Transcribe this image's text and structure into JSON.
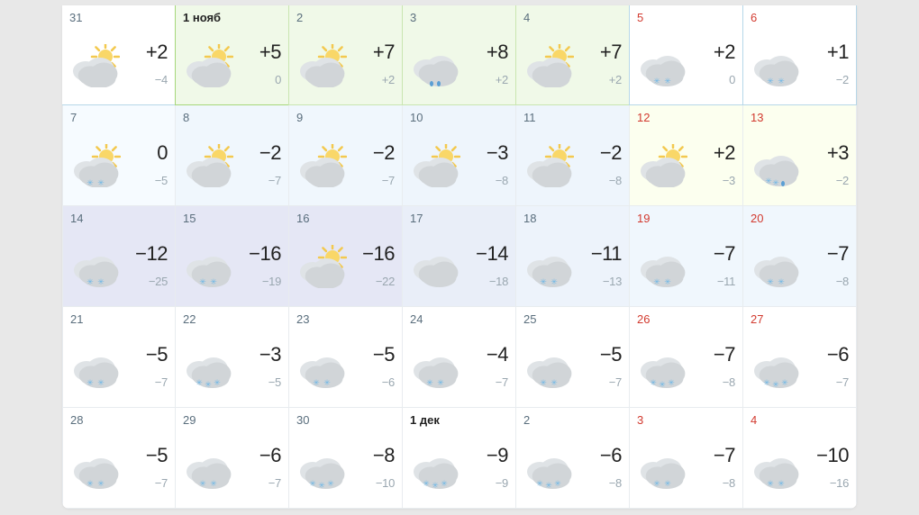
{
  "calendar": {
    "colors": {
      "page_bg": "#e8e8e8",
      "card_bg": "#ffffff",
      "border": "#e8ecef",
      "date_default": "#5a6e7d",
      "date_weekend": "#d23a2f",
      "date_bold": "#222222",
      "high_temp": "#222222",
      "low_temp": "#9aa7b0"
    },
    "days": [
      {
        "date": "31",
        "weekend": false,
        "bold": false,
        "high": "+2",
        "low": "−4",
        "icon": "partly-sunny",
        "bg": "#ffffff",
        "border_color": "#b6d7e8"
      },
      {
        "date": "1 нояб",
        "weekend": false,
        "bold": true,
        "high": "+5",
        "low": "0",
        "icon": "partly-sunny",
        "bg": "#f0f9e8",
        "border_color": "#a6d77a"
      },
      {
        "date": "2",
        "weekend": false,
        "bold": false,
        "high": "+7",
        "low": "+2",
        "icon": "partly-sunny",
        "bg": "#f0f9e8",
        "border_color": "#c9e6b0"
      },
      {
        "date": "3",
        "weekend": false,
        "bold": false,
        "high": "+8",
        "low": "+2",
        "icon": "rain",
        "bg": "#f0f9e8",
        "border_color": "#c9e6b0"
      },
      {
        "date": "4",
        "weekend": false,
        "bold": false,
        "high": "+7",
        "low": "+2",
        "icon": "partly-sunny",
        "bg": "#f0f9e8",
        "border_color": "#c9e6b0"
      },
      {
        "date": "5",
        "weekend": true,
        "bold": false,
        "high": "+2",
        "low": "0",
        "icon": "cloud-snow",
        "bg": "#ffffff",
        "border_color": "#b6d7e8"
      },
      {
        "date": "6",
        "weekend": true,
        "bold": false,
        "high": "+1",
        "low": "−2",
        "icon": "cloud-snow",
        "bg": "#ffffff",
        "border_color": "#b6d7e8"
      },
      {
        "date": "7",
        "weekend": false,
        "bold": false,
        "high": "0",
        "low": "−5",
        "icon": "partly-sunny-snow",
        "bg": "#f6fbff"
      },
      {
        "date": "8",
        "weekend": false,
        "bold": false,
        "high": "−2",
        "low": "−7",
        "icon": "partly-sunny",
        "bg": "#f0f7fd"
      },
      {
        "date": "9",
        "weekend": false,
        "bold": false,
        "high": "−2",
        "low": "−7",
        "icon": "partly-sunny",
        "bg": "#f0f7fd"
      },
      {
        "date": "10",
        "weekend": false,
        "bold": false,
        "high": "−3",
        "low": "−8",
        "icon": "partly-sunny",
        "bg": "#eef5fc"
      },
      {
        "date": "11",
        "weekend": false,
        "bold": false,
        "high": "−2",
        "low": "−8",
        "icon": "partly-sunny",
        "bg": "#eef5fc"
      },
      {
        "date": "12",
        "weekend": true,
        "bold": false,
        "high": "+2",
        "low": "−3",
        "icon": "partly-sunny",
        "bg": "#fcffef"
      },
      {
        "date": "13",
        "weekend": true,
        "bold": false,
        "high": "+3",
        "low": "−2",
        "icon": "rain-snow",
        "bg": "#fcffef"
      },
      {
        "date": "14",
        "weekend": false,
        "bold": false,
        "high": "−12",
        "low": "−25",
        "icon": "cloud-snow",
        "bg": "#e5e7f5"
      },
      {
        "date": "15",
        "weekend": false,
        "bold": false,
        "high": "−16",
        "low": "−19",
        "icon": "cloud-snow",
        "bg": "#e5e7f5"
      },
      {
        "date": "16",
        "weekend": false,
        "bold": false,
        "high": "−16",
        "low": "−22",
        "icon": "partly-sunny",
        "bg": "#e5e7f5"
      },
      {
        "date": "17",
        "weekend": false,
        "bold": false,
        "high": "−14",
        "low": "−18",
        "icon": "cloudy",
        "bg": "#e9eef8"
      },
      {
        "date": "18",
        "weekend": false,
        "bold": false,
        "high": "−11",
        "low": "−13",
        "icon": "cloud-snow",
        "bg": "#edf3fb"
      },
      {
        "date": "19",
        "weekend": true,
        "bold": false,
        "high": "−7",
        "low": "−11",
        "icon": "cloud-snow",
        "bg": "#f0f7fd"
      },
      {
        "date": "20",
        "weekend": true,
        "bold": false,
        "high": "−7",
        "low": "−8",
        "icon": "cloud-snow",
        "bg": "#f0f7fd"
      },
      {
        "date": "21",
        "weekend": false,
        "bold": false,
        "high": "−5",
        "low": "−7",
        "icon": "cloud-snow",
        "bg": "#ffffff"
      },
      {
        "date": "22",
        "weekend": false,
        "bold": false,
        "high": "−3",
        "low": "−5",
        "icon": "cloud-heavy-snow",
        "bg": "#ffffff"
      },
      {
        "date": "23",
        "weekend": false,
        "bold": false,
        "high": "−5",
        "low": "−6",
        "icon": "cloud-snow",
        "bg": "#ffffff"
      },
      {
        "date": "24",
        "weekend": false,
        "bold": false,
        "high": "−4",
        "low": "−7",
        "icon": "cloud-snow",
        "bg": "#ffffff"
      },
      {
        "date": "25",
        "weekend": false,
        "bold": false,
        "high": "−5",
        "low": "−7",
        "icon": "cloud-snow",
        "bg": "#ffffff"
      },
      {
        "date": "26",
        "weekend": true,
        "bold": false,
        "high": "−7",
        "low": "−8",
        "icon": "cloud-heavy-snow",
        "bg": "#ffffff"
      },
      {
        "date": "27",
        "weekend": true,
        "bold": false,
        "high": "−6",
        "low": "−7",
        "icon": "cloud-heavy-snow",
        "bg": "#ffffff"
      },
      {
        "date": "28",
        "weekend": false,
        "bold": false,
        "high": "−5",
        "low": "−7",
        "icon": "cloud-snow",
        "bg": "#ffffff"
      },
      {
        "date": "29",
        "weekend": false,
        "bold": false,
        "high": "−6",
        "low": "−7",
        "icon": "cloud-snow",
        "bg": "#ffffff"
      },
      {
        "date": "30",
        "weekend": false,
        "bold": false,
        "high": "−8",
        "low": "−10",
        "icon": "cloud-heavy-snow",
        "bg": "#ffffff"
      },
      {
        "date": "1 дек",
        "weekend": false,
        "bold": true,
        "high": "−9",
        "low": "−9",
        "icon": "cloud-heavy-snow",
        "bg": "#ffffff"
      },
      {
        "date": "2",
        "weekend": false,
        "bold": false,
        "high": "−6",
        "low": "−8",
        "icon": "cloud-heavy-snow",
        "bg": "#ffffff"
      },
      {
        "date": "3",
        "weekend": true,
        "bold": false,
        "high": "−7",
        "low": "−8",
        "icon": "cloud-snow",
        "bg": "#ffffff"
      },
      {
        "date": "4",
        "weekend": true,
        "bold": false,
        "high": "−10",
        "low": "−16",
        "icon": "cloud-snow",
        "bg": "#ffffff"
      }
    ]
  }
}
